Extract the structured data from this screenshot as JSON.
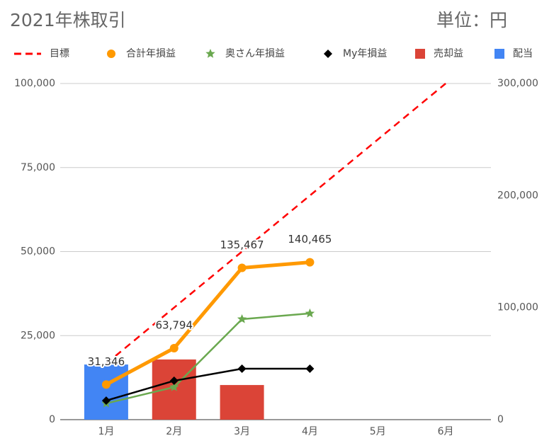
{
  "chart_data": {
    "type": "combo",
    "title": "2021年株取引",
    "subtitle": "単位：円",
    "categories": [
      "1月",
      "2月",
      "3月",
      "4月",
      "5月",
      "6月"
    ],
    "ylim": [
      0,
      100000
    ],
    "yticks": [
      0,
      {
        "value": 25000,
        "label": "25,000"
      },
      {
        "value": 50000,
        "label": "50,000"
      },
      {
        "value": 75000,
        "label": "75,000"
      },
      {
        "value": 100000,
        "label": "100,000"
      }
    ],
    "y2lim": [
      0,
      300000
    ],
    "y2ticks": [
      0,
      {
        "value": 100000,
        "label": "100,000"
      },
      {
        "value": 200000,
        "label": "200,000"
      },
      {
        "value": 300000,
        "label": "300,000"
      }
    ],
    "grid": true,
    "series": [
      {
        "name": "目標",
        "type": "line",
        "marker": "dash",
        "dashed": true,
        "color": "#ff0000",
        "axis": "y2",
        "values": [
          50000,
          100000,
          150000,
          200000,
          250000,
          300000
        ]
      },
      {
        "name": "合計年損益",
        "type": "line",
        "marker": "circle",
        "color": "#ff9900",
        "axis": "y2",
        "values": [
          31346,
          63794,
          135467,
          140465,
          null,
          null
        ],
        "value_labels": [
          "31,346",
          "63,794",
          "135,467",
          "140,465",
          null,
          null
        ]
      },
      {
        "name": "奥さん年損益",
        "type": "line",
        "marker": "star",
        "color": "#6aa84f",
        "axis": "y2",
        "values": [
          14500,
          29000,
          89700,
          94800,
          null,
          null
        ]
      },
      {
        "name": "My年損益",
        "type": "line",
        "marker": "diamond",
        "color": "#000000",
        "axis": "y2",
        "values": [
          17000,
          34700,
          45500,
          45500,
          null,
          null
        ]
      },
      {
        "name": "売却益",
        "type": "bar",
        "marker": "square",
        "color": "#db4437",
        "values": [
          null,
          17900,
          10300,
          null,
          null,
          null
        ]
      },
      {
        "name": "配当",
        "type": "bar",
        "marker": "square",
        "color": "#4285f4",
        "values": [
          16400,
          null,
          null,
          null,
          null,
          null
        ]
      }
    ]
  }
}
